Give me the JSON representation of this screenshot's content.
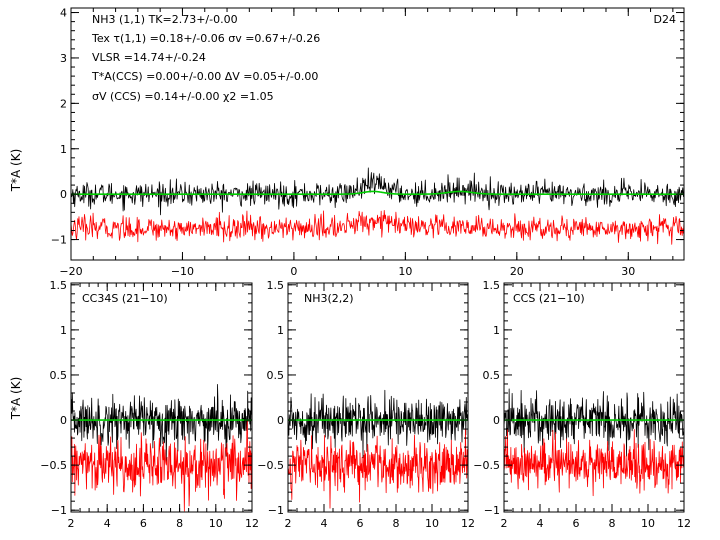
{
  "source_label": "D24",
  "colors": {
    "spectrum": "#000000",
    "offset_spectrum": "#ff0000",
    "fit": "#00cc00",
    "frame": "#000000"
  },
  "top_panel": {
    "ylabel": "T*A (K)",
    "fit_lines": [
      "NH3 (1,1)     TK=2.73+/-0.00",
      "Tex τ(1,1) =0.18+/-0.06    σv =0.67+/-0.26",
      "VLSR =14.74+/-0.24",
      "T*A(CCS) =0.00+/-0.00    ΔV =0.05+/-0.00",
      "σV (CCS) =0.14+/-0.00    χ2 =1.05"
    ]
  },
  "bottom_panels": [
    {
      "label": "CC34S (21−10)"
    },
    {
      "label": "NH3(2,2)"
    },
    {
      "label": "CCS (21−10)"
    }
  ],
  "chart_data": [
    {
      "type": "line",
      "panel": "top",
      "xlim": [
        -20,
        35
      ],
      "ylim": [
        -1.45,
        4.1
      ],
      "xticks": [
        -20,
        -10,
        0,
        10,
        20,
        30
      ],
      "yticks": [
        -1,
        0,
        1,
        2,
        3,
        4
      ],
      "ylabel": "T*A (K)",
      "series": [
        {
          "role": "spectrum",
          "baseline": 0.0,
          "noise_rms": 0.13,
          "features": [
            {
              "x": 7.3,
              "amp": 0.22,
              "width": 1.2
            },
            {
              "x": 15.0,
              "amp": 0.1,
              "width": 1.6
            }
          ]
        },
        {
          "role": "spectrum_offset",
          "baseline": -0.75,
          "noise_rms": 0.13,
          "features": [
            {
              "x": 7.3,
              "amp": 0.18,
              "width": 1.5
            }
          ]
        },
        {
          "role": "model_fit",
          "baseline": 0.0,
          "features": [
            {
              "x": 7.1,
              "amp": 0.06,
              "width": 0.9
            },
            {
              "x": 14.9,
              "amp": 0.06,
              "width": 1.1
            }
          ]
        }
      ]
    },
    {
      "type": "line",
      "panel": "bottom-1",
      "xlim": [
        2,
        12
      ],
      "ylim": [
        -1.02,
        1.52
      ],
      "xticks": [
        2,
        4,
        6,
        8,
        10,
        12
      ],
      "yticks": [
        -1.0,
        -0.5,
        0.0,
        0.5,
        1.0,
        1.5
      ],
      "ylabel": "T*A (K)",
      "series": [
        {
          "role": "spectrum",
          "baseline": 0.0,
          "noise_rms": 0.13
        },
        {
          "role": "spectrum_offset",
          "baseline": -0.5,
          "noise_rms": 0.15
        },
        {
          "role": "model_fit",
          "baseline": 0.0
        }
      ]
    },
    {
      "type": "line",
      "panel": "bottom-2",
      "xlim": [
        2,
        12
      ],
      "ylim": [
        -1.02,
        1.52
      ],
      "xticks": [
        2,
        4,
        6,
        8,
        10,
        12
      ],
      "yticks": [
        -1.0,
        -0.5,
        0.0,
        0.5,
        1.0,
        1.5
      ],
      "series": [
        {
          "role": "spectrum",
          "baseline": 0.0,
          "noise_rms": 0.13
        },
        {
          "role": "spectrum_offset",
          "baseline": -0.5,
          "noise_rms": 0.14
        },
        {
          "role": "model_fit",
          "baseline": 0.0
        }
      ]
    },
    {
      "type": "line",
      "panel": "bottom-3",
      "xlim": [
        2,
        12
      ],
      "ylim": [
        -1.02,
        1.52
      ],
      "xticks": [
        2,
        4,
        6,
        8,
        10,
        12
      ],
      "yticks": [
        -1.0,
        -0.5,
        0.0,
        0.5,
        1.0,
        1.5
      ],
      "series": [
        {
          "role": "spectrum",
          "baseline": 0.0,
          "noise_rms": 0.14
        },
        {
          "role": "spectrum_offset",
          "baseline": -0.5,
          "noise_rms": 0.14
        },
        {
          "role": "model_fit",
          "baseline": 0.0
        }
      ]
    }
  ]
}
